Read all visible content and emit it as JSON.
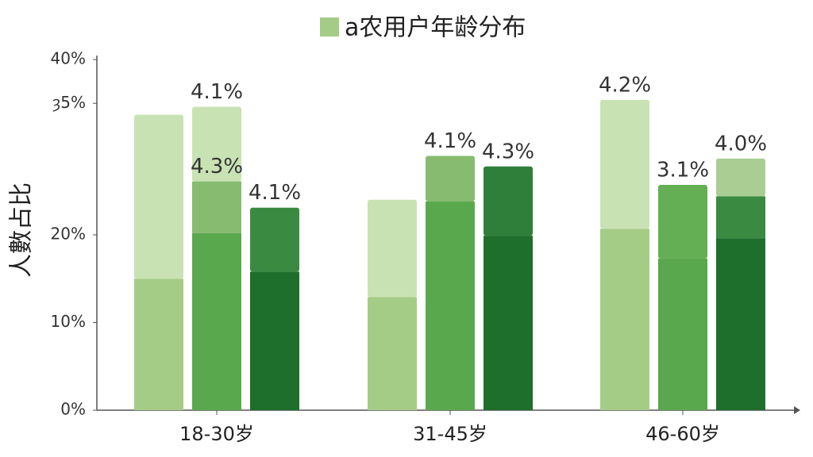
{
  "chart_data": {
    "type": "stacked-bar",
    "legend": {
      "label": "a农用户年龄分布",
      "color": "#a5cc87"
    },
    "ylabel": "人數占比",
    "ylim": [
      0,
      40
    ],
    "yticks": [
      {
        "value": 0,
        "label": "0%"
      },
      {
        "value": 10,
        "label": "10%"
      },
      {
        "value": 20,
        "label": "20%"
      },
      {
        "value": 35,
        "label": "ȝ5%"
      },
      {
        "value": 40,
        "label": "40%"
      }
    ],
    "categories": [
      "18-30岁",
      "31-45岁",
      "46-60岁"
    ],
    "bars": [
      [
        [
          {
            "value": 15.0,
            "color": "#a5cc87"
          },
          {
            "value": 18.7,
            "color": "#c9e2b4"
          }
        ],
        [
          {
            "value": 20.2,
            "color": "#5aa84d"
          },
          {
            "value": 5.9,
            "color": "#86bb70"
          },
          {
            "value": 8.5,
            "color": "#c9e2b4"
          }
        ],
        [
          {
            "value": 15.8,
            "color": "#1e6e2c"
          },
          {
            "value": 7.3,
            "color": "#3b8a42"
          }
        ]
      ],
      [
        [
          {
            "value": 12.9,
            "color": "#a5cc87"
          },
          {
            "value": 11.1,
            "color": "#c9e2b4"
          }
        ],
        [
          {
            "value": 23.8,
            "color": "#5aa84d"
          },
          {
            "value": 5.2,
            "color": "#86bb70"
          }
        ],
        [
          {
            "value": 19.9,
            "color": "#1e6e2c"
          },
          {
            "value": 7.9,
            "color": "#2f7f3a"
          }
        ]
      ],
      [
        [
          {
            "value": 20.7,
            "color": "#a5cc87"
          },
          {
            "value": 14.7,
            "color": "#c9e2b4"
          }
        ],
        [
          {
            "value": 17.3,
            "color": "#5aa84d"
          },
          {
            "value": 8.4,
            "color": "#64ae53"
          }
        ],
        [
          {
            "value": 19.6,
            "color": "#1e6e2c"
          },
          {
            "value": 4.8,
            "color": "#3b8a42"
          },
          {
            "value": 4.3,
            "color": "#a9cd92"
          }
        ]
      ]
    ],
    "annotations": [
      "4.1%",
      "4.3%",
      "4.1%",
      "4.1%",
      "4.3%",
      "4.2%",
      "3.1%",
      "4.0%"
    ]
  }
}
